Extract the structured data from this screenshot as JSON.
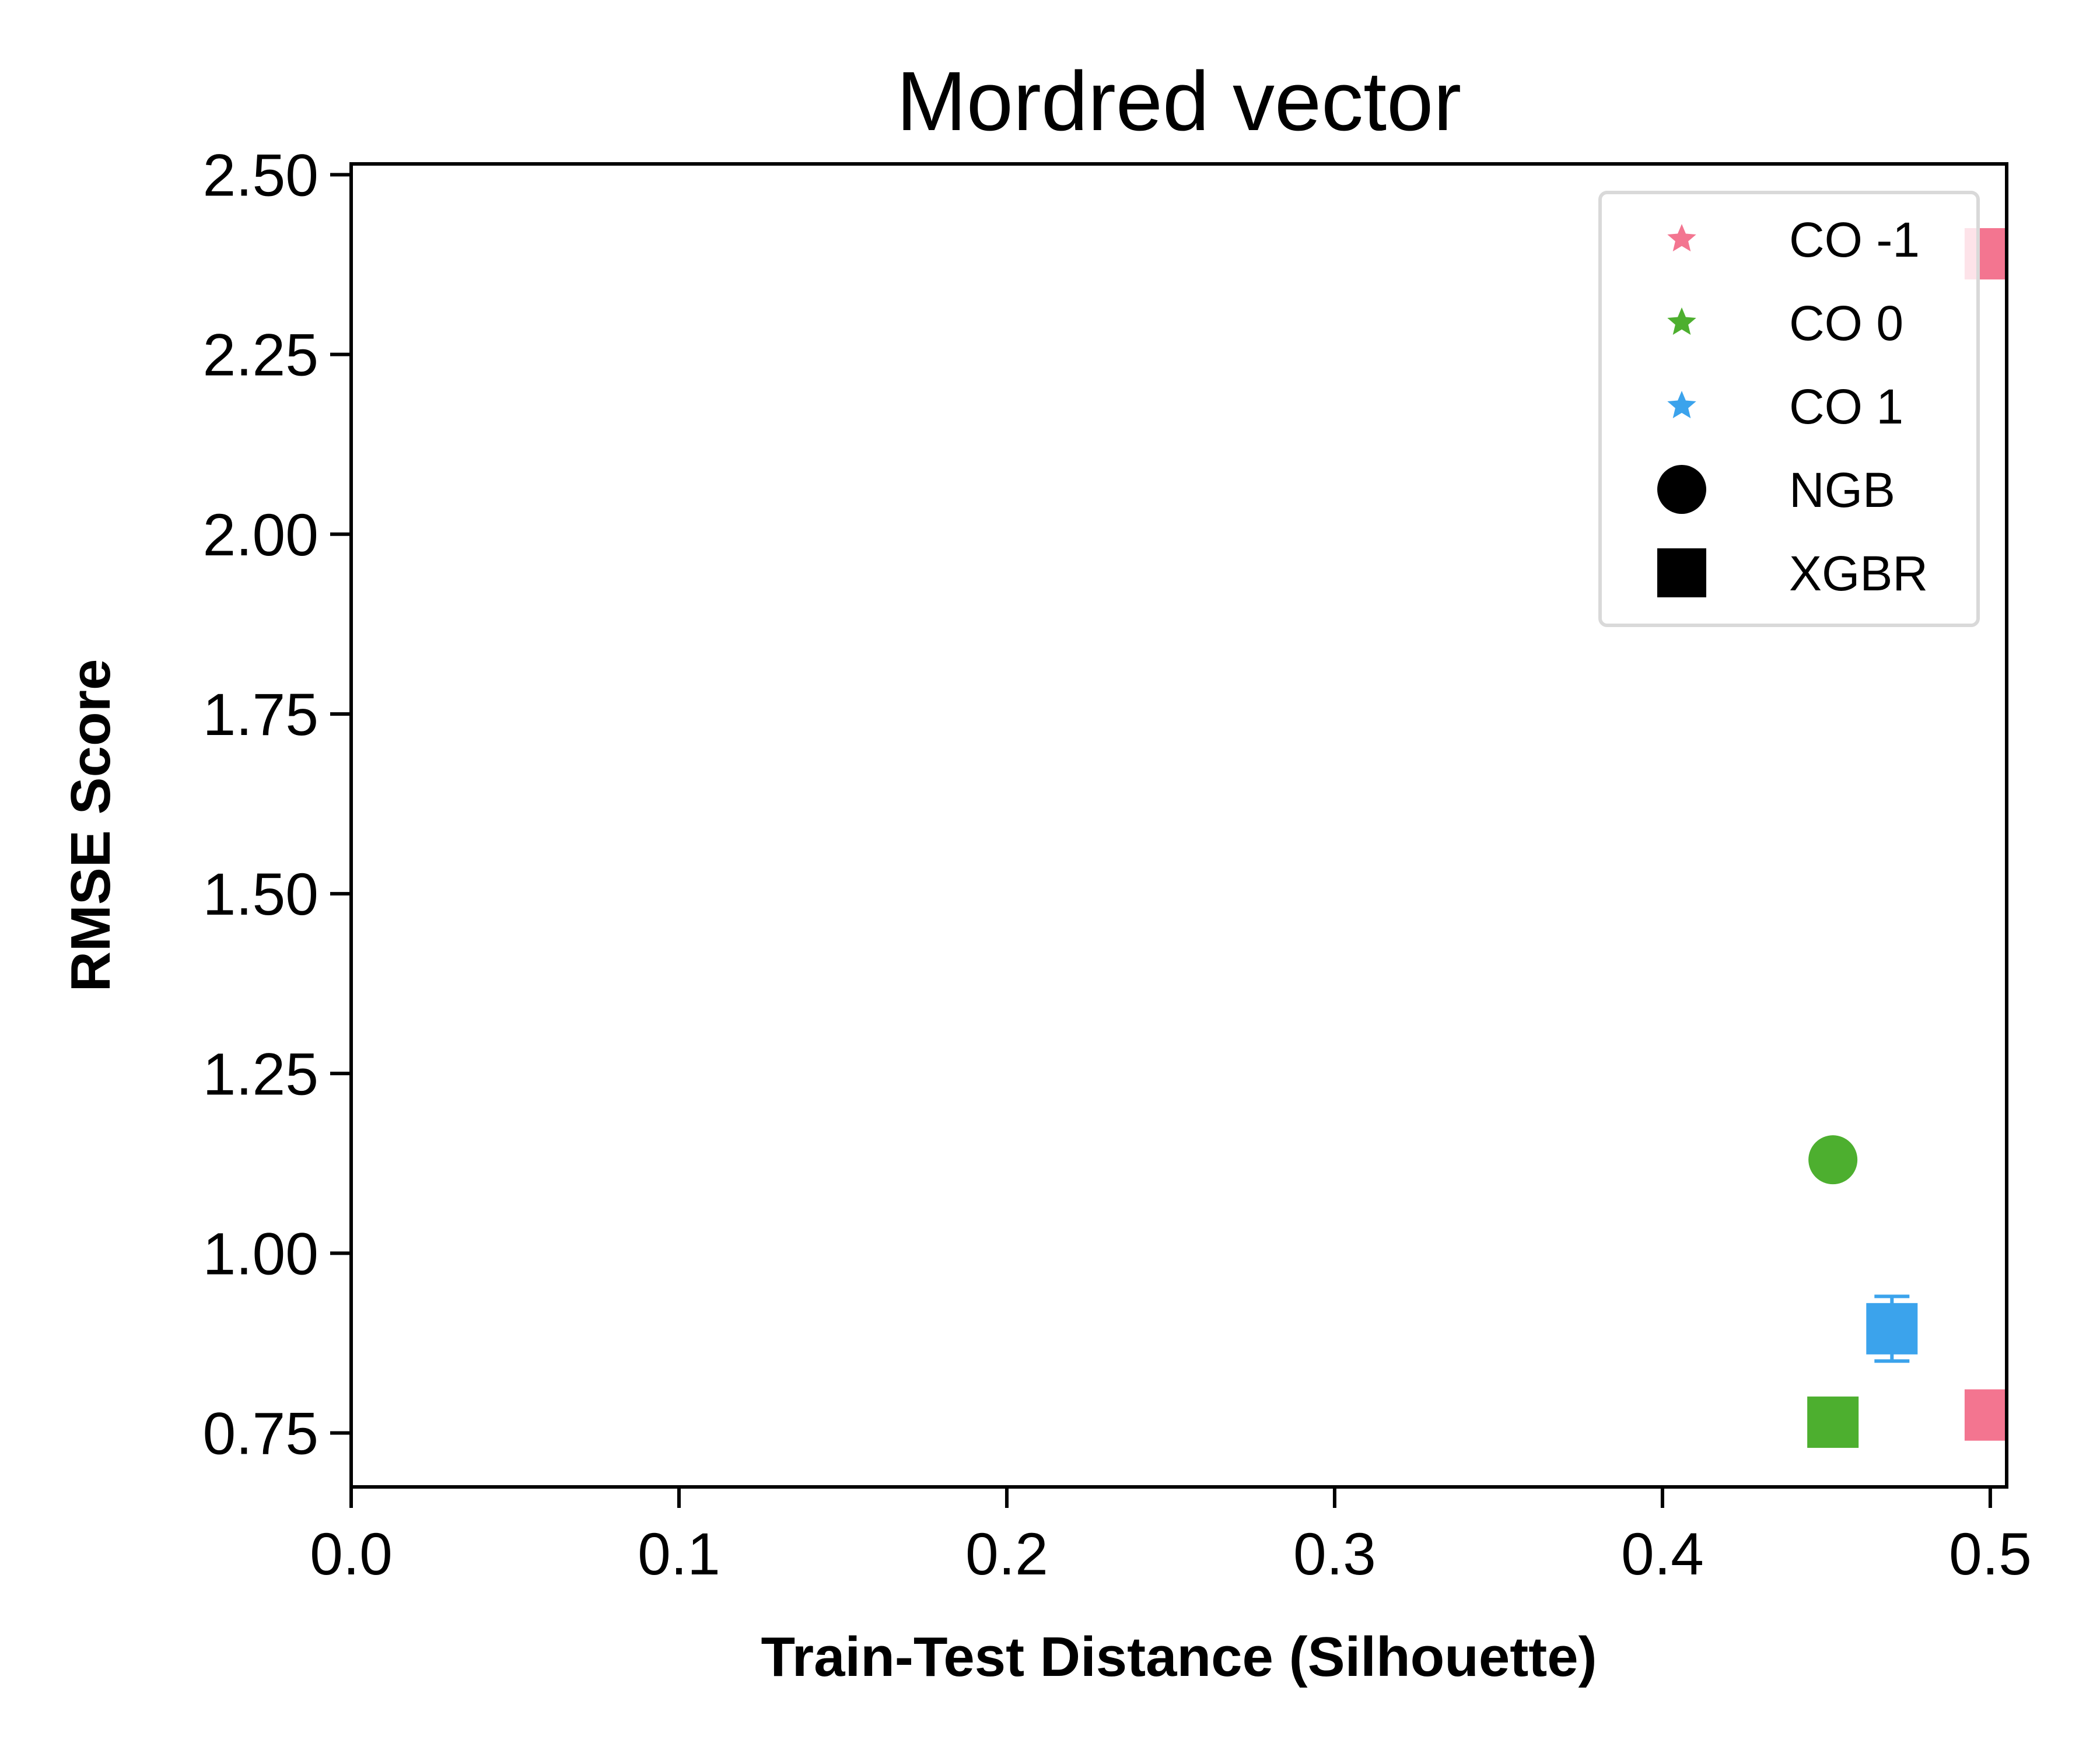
{
  "chart_data": {
    "type": "scatter",
    "title": "Mordred vector",
    "xlabel": "Train-Test Distance (Silhouette)",
    "ylabel": "RMSE Score",
    "xlim": [
      0.0,
      0.505
    ],
    "ylim": [
      0.675,
      2.515
    ],
    "xticks": [
      0.0,
      0.1,
      0.2,
      0.3,
      0.4,
      0.5
    ],
    "xtick_labels": [
      "0.0",
      "0.1",
      "0.2",
      "0.3",
      "0.4",
      "0.5"
    ],
    "yticks": [
      0.75,
      1.0,
      1.25,
      1.5,
      1.75,
      2.0,
      2.25,
      2.5
    ],
    "ytick_labels": [
      "0.75",
      "1.00",
      "1.25",
      "1.50",
      "1.75",
      "2.00",
      "2.25",
      "2.50"
    ],
    "grid": false,
    "legend_position": "top-right",
    "legend": [
      {
        "label": "CO -1",
        "marker": "star",
        "color": "#f37590"
      },
      {
        "label": "CO 0",
        "marker": "star",
        "color": "#4daf2f"
      },
      {
        "label": "CO 1",
        "marker": "star",
        "color": "#3ba3ec"
      },
      {
        "label": "NGB",
        "marker": "circle",
        "color": "#000000"
      },
      {
        "label": "XGBR",
        "marker": "square",
        "color": "#000000"
      }
    ],
    "points": [
      {
        "group": "CO -1",
        "model": "NGB",
        "marker": "circle",
        "color": "#f37590",
        "x": 0.5,
        "y": 2.39
      },
      {
        "group": "CO -1",
        "model": "XGBR",
        "marker": "square",
        "color": "#f37590",
        "x": 0.5,
        "y": 2.39
      },
      {
        "group": "CO 0",
        "model": "NGB",
        "marker": "circle",
        "color": "#4daf2f",
        "x": 0.452,
        "y": 1.13
      },
      {
        "group": "CO 0",
        "model": "XGBR",
        "marker": "square",
        "color": "#4daf2f",
        "x": 0.452,
        "y": 0.765
      },
      {
        "group": "CO 1",
        "model": "XGBR",
        "marker": "square",
        "color": "#3ba3ec",
        "x": 0.47,
        "y": 0.895,
        "yerr_low": 0.85,
        "yerr_high": 0.94
      },
      {
        "group": "CO -1",
        "model": "XGBR",
        "marker": "square",
        "color": "#f37590",
        "x": 0.5,
        "y": 0.775
      }
    ]
  }
}
